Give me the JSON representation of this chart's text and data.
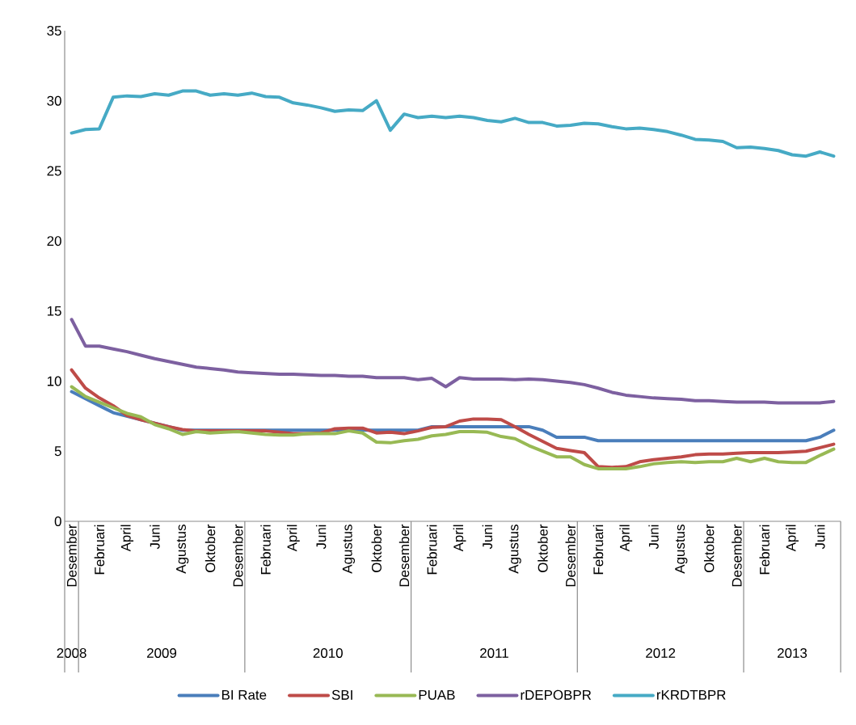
{
  "chart_data": {
    "type": "line",
    "categories": [
      "Desember",
      null,
      "Februari",
      null,
      "April",
      null,
      "Juni",
      null,
      "Agustus",
      null,
      "Oktober",
      null,
      "Desember",
      null,
      "Februari",
      null,
      "April",
      null,
      "Juni",
      null,
      "Agustus",
      null,
      "Oktober",
      null,
      "Desember",
      null,
      "Februari",
      null,
      "April",
      null,
      "Juni",
      null,
      "Agustus",
      null,
      "Oktober",
      null,
      "Desember",
      null,
      "Februari",
      null,
      "April",
      null,
      "Juni",
      null,
      "Agustus",
      null,
      "Oktober",
      null,
      "Desember",
      null,
      "Februari",
      null,
      "April",
      null,
      "Juni",
      null
    ],
    "series": [
      {
        "name": "BI Rate",
        "color": "#4a7ebb",
        "values": [
          9.25,
          8.75,
          8.25,
          7.75,
          7.5,
          7.25,
          7.0,
          6.75,
          6.5,
          6.5,
          6.5,
          6.5,
          6.5,
          6.5,
          6.5,
          6.5,
          6.5,
          6.5,
          6.5,
          6.5,
          6.5,
          6.5,
          6.5,
          6.5,
          6.5,
          6.5,
          6.75,
          6.75,
          6.75,
          6.75,
          6.75,
          6.75,
          6.75,
          6.75,
          6.5,
          6.0,
          6.0,
          6.0,
          5.75,
          5.75,
          5.75,
          5.75,
          5.75,
          5.75,
          5.75,
          5.75,
          5.75,
          5.75,
          5.75,
          5.75,
          5.75,
          5.75,
          5.75,
          5.75,
          6.0,
          6.5
        ]
      },
      {
        "name": "SBI",
        "color": "#be4b48",
        "values": [
          10.8,
          9.5,
          8.8,
          8.25,
          7.55,
          7.25,
          7.0,
          6.75,
          6.55,
          6.45,
          6.45,
          6.45,
          6.45,
          6.45,
          6.45,
          6.35,
          6.25,
          6.25,
          6.3,
          6.6,
          6.65,
          6.65,
          6.3,
          6.35,
          6.25,
          6.45,
          6.7,
          6.75,
          7.15,
          7.3,
          7.3,
          7.25,
          6.75,
          6.2,
          5.7,
          5.2,
          5.05,
          4.9,
          3.9,
          3.85,
          3.9,
          4.25,
          4.4,
          4.5,
          4.6,
          4.75,
          4.8,
          4.8,
          4.85,
          4.9,
          4.9,
          4.9,
          4.95,
          5.0,
          5.25,
          5.5
        ]
      },
      {
        "name": "PUAB",
        "color": "#98b954",
        "values": [
          9.6,
          8.9,
          8.5,
          8.1,
          7.7,
          7.45,
          6.9,
          6.6,
          6.2,
          6.4,
          6.3,
          6.35,
          6.4,
          6.3,
          6.2,
          6.15,
          6.15,
          6.25,
          6.25,
          6.25,
          6.45,
          6.3,
          5.65,
          5.6,
          5.75,
          5.85,
          6.1,
          6.2,
          6.4,
          6.4,
          6.35,
          6.05,
          5.9,
          5.4,
          5.0,
          4.6,
          4.6,
          4.05,
          3.75,
          3.75,
          3.75,
          3.9,
          4.1,
          4.2,
          4.25,
          4.2,
          4.25,
          4.25,
          4.5,
          4.25,
          4.5,
          4.25,
          4.2,
          4.2,
          4.7,
          5.15
        ]
      },
      {
        "name": "rDEPOBPR",
        "color": "#7d60a0",
        "values": [
          14.4,
          12.5,
          12.5,
          12.3,
          12.1,
          11.85,
          11.6,
          11.4,
          11.2,
          11.0,
          10.9,
          10.8,
          10.65,
          10.6,
          10.55,
          10.5,
          10.5,
          10.45,
          10.4,
          10.4,
          10.35,
          10.35,
          10.25,
          10.25,
          10.25,
          10.1,
          10.2,
          9.6,
          10.25,
          10.15,
          10.15,
          10.15,
          10.1,
          10.15,
          10.1,
          10.0,
          9.9,
          9.75,
          9.5,
          9.2,
          9.0,
          8.9,
          8.8,
          8.75,
          8.7,
          8.6,
          8.6,
          8.55,
          8.5,
          8.5,
          8.5,
          8.45,
          8.45,
          8.45,
          8.45,
          8.55
        ]
      },
      {
        "name": "rKRDTBPR",
        "color": "#46aac5",
        "values": [
          27.7,
          27.95,
          28.0,
          30.25,
          30.35,
          30.3,
          30.5,
          30.4,
          30.7,
          30.7,
          30.4,
          30.5,
          30.4,
          30.55,
          30.3,
          30.25,
          29.85,
          29.7,
          29.5,
          29.25,
          29.35,
          29.3,
          30.0,
          27.9,
          29.05,
          28.8,
          28.9,
          28.8,
          28.9,
          28.8,
          28.6,
          28.5,
          28.75,
          28.45,
          28.45,
          28.2,
          28.25,
          28.4,
          28.35,
          28.15,
          28.0,
          28.05,
          27.95,
          27.8,
          27.55,
          27.25,
          27.2,
          27.1,
          26.65,
          26.7,
          26.6,
          26.45,
          26.15,
          26.05,
          26.35,
          26.05
        ]
      }
    ],
    "annotations": [
      "2008",
      "2009",
      "2010",
      "2011",
      "2012",
      "2013"
    ],
    "ylim": [
      0,
      35
    ],
    "yticks": [
      0,
      5,
      10,
      15,
      20,
      25,
      30,
      35
    ],
    "legend": "bottom"
  }
}
